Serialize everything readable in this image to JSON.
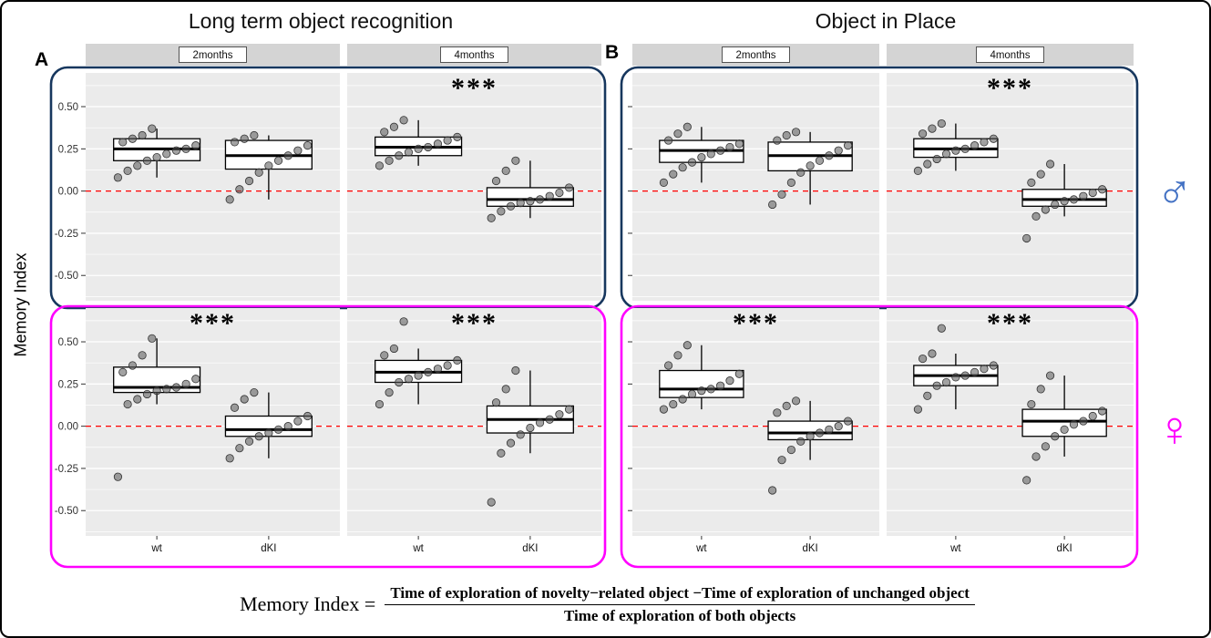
{
  "figure": {
    "y_axis_label": "Memory Index",
    "male_symbol": "♂",
    "female_symbol": "♀",
    "formula": {
      "lhs": "Memory Index =",
      "numerator": "Time of exploration of novelty−related object −Time of exploration of unchanged object",
      "denominator": "Time of exploration of both objects"
    },
    "colors": {
      "male_frame": "#17375e",
      "female_frame": "#ff00ff",
      "male_symbol": "#4472c4",
      "female_symbol": "#ff00ff",
      "panel_bg": "#ebebeb",
      "strip_bg": "#d4d4d4",
      "reference_line": "#ff0000",
      "point": "#555555"
    }
  },
  "chart_data": {
    "type": "boxplot",
    "ylabel": "Memory Index",
    "ylim": [
      -0.65,
      0.7
    ],
    "yticks": [
      0.5,
      0.25,
      0.0,
      -0.25,
      -0.5
    ],
    "ytick_labels": [
      "0.50",
      "0.25",
      "0.00",
      "-0.25",
      "-0.50"
    ],
    "reference_line": 0.0,
    "groups": [
      "wt",
      "dKI"
    ],
    "facets": [
      "2months",
      "4months"
    ],
    "rows": [
      "male",
      "female"
    ],
    "legend_position": "none",
    "grid": true,
    "panels": [
      {
        "label": "A",
        "title": "Long term object recognition",
        "rows": [
          {
            "sex": "male",
            "frame_color": "#17375e",
            "cells": [
              {
                "facet": "2months",
                "significance": "",
                "boxes": [
                  {
                    "group": "wt",
                    "whisker_low": 0.08,
                    "q1": 0.18,
                    "median": 0.25,
                    "q3": 0.31,
                    "whisker_high": 0.37,
                    "points": [
                      0.08,
                      0.12,
                      0.15,
                      0.18,
                      0.2,
                      0.22,
                      0.24,
                      0.25,
                      0.27,
                      0.29,
                      0.31,
                      0.33,
                      0.37
                    ]
                  },
                  {
                    "group": "dKI",
                    "whisker_low": -0.05,
                    "q1": 0.13,
                    "median": 0.21,
                    "q3": 0.3,
                    "whisker_high": 0.33,
                    "points": [
                      -0.05,
                      0.01,
                      0.06,
                      0.11,
                      0.15,
                      0.18,
                      0.21,
                      0.24,
                      0.27,
                      0.29,
                      0.31,
                      0.33
                    ]
                  }
                ]
              },
              {
                "facet": "4months",
                "significance": "***",
                "boxes": [
                  {
                    "group": "wt",
                    "whisker_low": 0.15,
                    "q1": 0.21,
                    "median": 0.26,
                    "q3": 0.32,
                    "whisker_high": 0.42,
                    "points": [
                      0.15,
                      0.18,
                      0.21,
                      0.23,
                      0.25,
                      0.26,
                      0.28,
                      0.3,
                      0.32,
                      0.35,
                      0.38,
                      0.42
                    ]
                  },
                  {
                    "group": "dKI",
                    "whisker_low": -0.16,
                    "q1": -0.09,
                    "median": -0.05,
                    "q3": 0.02,
                    "whisker_high": 0.18,
                    "points": [
                      -0.16,
                      -0.12,
                      -0.09,
                      -0.07,
                      -0.06,
                      -0.05,
                      -0.03,
                      -0.01,
                      0.02,
                      0.06,
                      0.12,
                      0.18
                    ]
                  }
                ]
              }
            ]
          },
          {
            "sex": "female",
            "frame_color": "#ff00ff",
            "cells": [
              {
                "facet": "2months",
                "significance": "***",
                "boxes": [
                  {
                    "group": "wt",
                    "whisker_low": 0.13,
                    "q1": 0.2,
                    "median": 0.23,
                    "q3": 0.35,
                    "whisker_high": 0.52,
                    "points": [
                      -0.3,
                      0.13,
                      0.16,
                      0.19,
                      0.21,
                      0.22,
                      0.23,
                      0.25,
                      0.28,
                      0.32,
                      0.36,
                      0.42,
                      0.52
                    ]
                  },
                  {
                    "group": "dKI",
                    "whisker_low": -0.19,
                    "q1": -0.06,
                    "median": -0.02,
                    "q3": 0.06,
                    "whisker_high": 0.2,
                    "points": [
                      -0.19,
                      -0.13,
                      -0.09,
                      -0.06,
                      -0.04,
                      -0.02,
                      0.0,
                      0.03,
                      0.06,
                      0.11,
                      0.16,
                      0.2
                    ]
                  }
                ]
              },
              {
                "facet": "4months",
                "significance": "***",
                "boxes": [
                  {
                    "group": "wt",
                    "whisker_low": 0.13,
                    "q1": 0.26,
                    "median": 0.32,
                    "q3": 0.39,
                    "whisker_high": 0.46,
                    "points": [
                      0.13,
                      0.2,
                      0.26,
                      0.28,
                      0.3,
                      0.32,
                      0.34,
                      0.36,
                      0.39,
                      0.42,
                      0.46,
                      0.62
                    ]
                  },
                  {
                    "group": "dKI",
                    "whisker_low": -0.16,
                    "q1": -0.04,
                    "median": 0.04,
                    "q3": 0.12,
                    "whisker_high": 0.33,
                    "points": [
                      -0.45,
                      -0.16,
                      -0.1,
                      -0.05,
                      -0.01,
                      0.02,
                      0.04,
                      0.07,
                      0.1,
                      0.14,
                      0.22,
                      0.33
                    ]
                  }
                ]
              }
            ]
          }
        ]
      },
      {
        "label": "B",
        "title": "Object in Place",
        "rows": [
          {
            "sex": "male",
            "frame_color": "#17375e",
            "cells": [
              {
                "facet": "2months",
                "significance": "",
                "boxes": [
                  {
                    "group": "wt",
                    "whisker_low": 0.05,
                    "q1": 0.17,
                    "median": 0.24,
                    "q3": 0.3,
                    "whisker_high": 0.38,
                    "points": [
                      0.05,
                      0.1,
                      0.14,
                      0.17,
                      0.2,
                      0.22,
                      0.24,
                      0.26,
                      0.28,
                      0.3,
                      0.34,
                      0.38
                    ]
                  },
                  {
                    "group": "dKI",
                    "whisker_low": -0.08,
                    "q1": 0.12,
                    "median": 0.21,
                    "q3": 0.29,
                    "whisker_high": 0.35,
                    "points": [
                      -0.08,
                      -0.02,
                      0.05,
                      0.11,
                      0.15,
                      0.18,
                      0.21,
                      0.24,
                      0.27,
                      0.3,
                      0.33,
                      0.35
                    ]
                  }
                ]
              },
              {
                "facet": "4months",
                "significance": "***",
                "boxes": [
                  {
                    "group": "wt",
                    "whisker_low": 0.12,
                    "q1": 0.2,
                    "median": 0.25,
                    "q3": 0.31,
                    "whisker_high": 0.4,
                    "points": [
                      0.12,
                      0.16,
                      0.19,
                      0.22,
                      0.24,
                      0.25,
                      0.27,
                      0.29,
                      0.31,
                      0.34,
                      0.37,
                      0.4
                    ]
                  },
                  {
                    "group": "dKI",
                    "whisker_low": -0.15,
                    "q1": -0.09,
                    "median": -0.05,
                    "q3": 0.01,
                    "whisker_high": 0.16,
                    "points": [
                      -0.28,
                      -0.15,
                      -0.11,
                      -0.08,
                      -0.06,
                      -0.05,
                      -0.03,
                      -0.01,
                      0.01,
                      0.05,
                      0.1,
                      0.16
                    ]
                  }
                ]
              }
            ]
          },
          {
            "sex": "female",
            "frame_color": "#ff00ff",
            "cells": [
              {
                "facet": "2months",
                "significance": "***",
                "boxes": [
                  {
                    "group": "wt",
                    "whisker_low": 0.1,
                    "q1": 0.17,
                    "median": 0.22,
                    "q3": 0.33,
                    "whisker_high": 0.48,
                    "points": [
                      0.1,
                      0.13,
                      0.16,
                      0.19,
                      0.21,
                      0.22,
                      0.24,
                      0.27,
                      0.31,
                      0.36,
                      0.42,
                      0.48
                    ]
                  },
                  {
                    "group": "dKI",
                    "whisker_low": -0.2,
                    "q1": -0.08,
                    "median": -0.04,
                    "q3": 0.03,
                    "whisker_high": 0.15,
                    "points": [
                      -0.38,
                      -0.2,
                      -0.14,
                      -0.09,
                      -0.06,
                      -0.04,
                      -0.02,
                      0.0,
                      0.03,
                      0.08,
                      0.12,
                      0.15
                    ]
                  }
                ]
              },
              {
                "facet": "4months",
                "significance": "***",
                "boxes": [
                  {
                    "group": "wt",
                    "whisker_low": 0.1,
                    "q1": 0.24,
                    "median": 0.3,
                    "q3": 0.36,
                    "whisker_high": 0.43,
                    "points": [
                      0.1,
                      0.18,
                      0.24,
                      0.26,
                      0.29,
                      0.3,
                      0.32,
                      0.34,
                      0.36,
                      0.4,
                      0.43,
                      0.58
                    ]
                  },
                  {
                    "group": "dKI",
                    "whisker_low": -0.18,
                    "q1": -0.06,
                    "median": 0.03,
                    "q3": 0.1,
                    "whisker_high": 0.3,
                    "points": [
                      -0.32,
                      -0.18,
                      -0.12,
                      -0.06,
                      -0.02,
                      0.01,
                      0.03,
                      0.06,
                      0.09,
                      0.13,
                      0.22,
                      0.3
                    ]
                  }
                ]
              }
            ]
          }
        ]
      }
    ]
  }
}
